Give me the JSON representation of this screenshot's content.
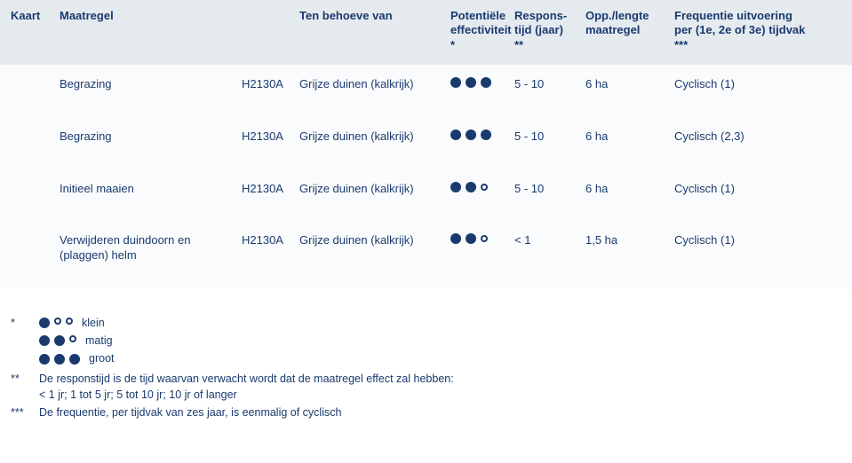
{
  "colors": {
    "text": "#1a3a6e",
    "header_bg": "#e5eaef",
    "row_bg": "#fafbfc",
    "dot_fill": "#1a3a6e",
    "dot_empty_bg": "#ffffff"
  },
  "columns": {
    "kaart": "Kaart",
    "maatregel": "Maatregel",
    "tenbehoeve": "Ten behoeve van",
    "effect_l1": "Potentiële",
    "effect_l2": "effectiviteit",
    "effect_l3": "*",
    "respons_l1": "Respons-",
    "respons_l2": "tijd (jaar)",
    "respons_l3": "**",
    "opp_l1": "Opp./lengte",
    "opp_l2": "maatregel",
    "freq_l1": "Frequentie uitvoering",
    "freq_l2": "per (1e, 2e of 3e) tijdvak",
    "freq_l3": "***"
  },
  "rows": [
    {
      "maatregel": "Begrazing",
      "code": "H2130A",
      "naam": "Grijze duinen (kalkrijk)",
      "effect": 3,
      "respons": "5 - 10",
      "opp": "6 ha",
      "freq": "Cyclisch (1)"
    },
    {
      "maatregel": "Begrazing",
      "code": "H2130A",
      "naam": "Grijze duinen (kalkrijk)",
      "effect": 3,
      "respons": "5 - 10",
      "opp": "6 ha",
      "freq": "Cyclisch (2,3)"
    },
    {
      "maatregel": "Initieel maaien",
      "code": "H2130A",
      "naam": "Grijze duinen (kalkrijk)",
      "effect": 2,
      "respons": "5 - 10",
      "opp": "6 ha",
      "freq": "Cyclisch (1)"
    },
    {
      "maatregel": "Verwijderen duindoorn en (plaggen) helm",
      "code": "H2130A",
      "naam": "Grijze duinen (kalkrijk)",
      "effect": 2,
      "respons": "< 1",
      "opp": "1,5 ha",
      "freq": "Cyclisch (1)"
    }
  ],
  "legend": {
    "items": [
      {
        "level": 1,
        "label": "klein"
      },
      {
        "level": 2,
        "label": "matig"
      },
      {
        "level": 3,
        "label": "groot"
      }
    ]
  },
  "footnotes": {
    "f1_mark": "*",
    "f2_mark": "**",
    "f2_l1": "De responstijd is de tijd waarvan verwacht wordt dat de maatregel effect zal hebben:",
    "f2_l2": "< 1 jr; 1 tot 5 jr; 5 tot 10 jr; 10 jr of langer",
    "f3_mark": "***",
    "f3_text": "De frequentie, per tijdvak van zes jaar, is eenmalig of cyclisch"
  }
}
